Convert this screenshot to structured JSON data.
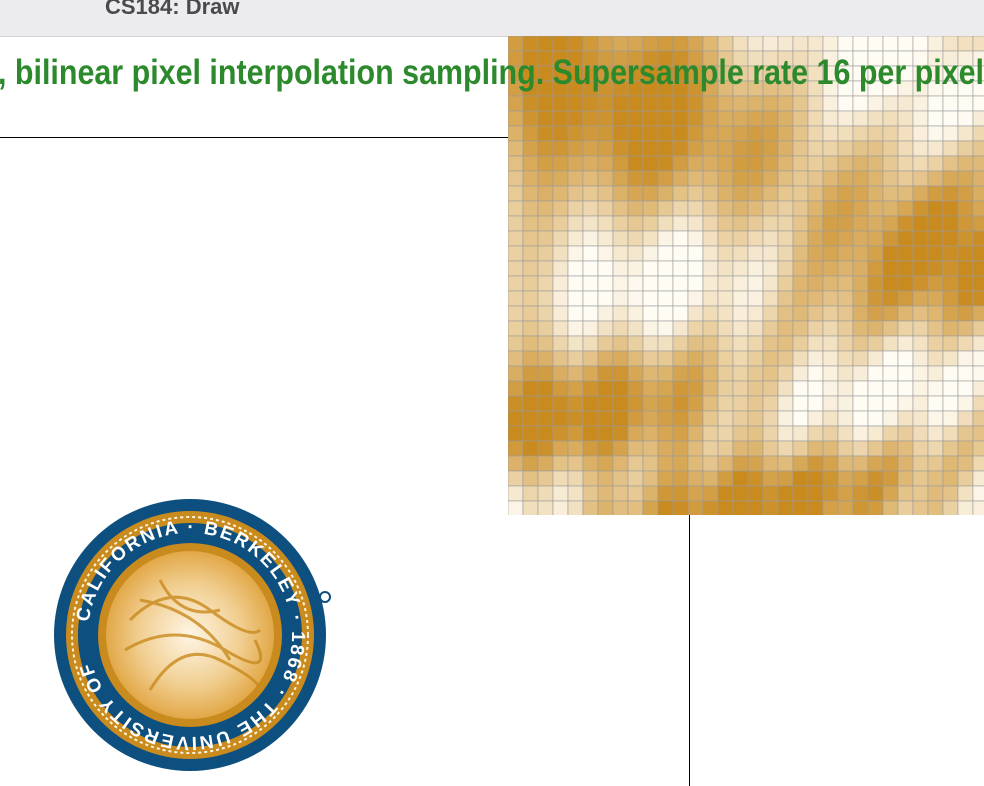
{
  "window": {
    "title": "CS184: Draw"
  },
  "status": {
    "text": ", bilinear pixel interpolation sampling. Supersample rate 16 per pixel"
  },
  "seal": {
    "text": "CALIFORNIA · BERKELEY · 1868 · THE UNIVERSITY OF"
  }
}
